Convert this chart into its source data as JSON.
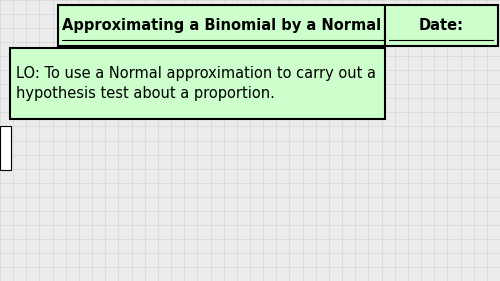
{
  "background_color": "#ececec",
  "grid_color": "#d0d0d0",
  "box_fill_color": "#ccffcc",
  "box_edge_color": "#000000",
  "title_text": "Approximating a Binomial by a Normal",
  "date_text": "Date:",
  "lo_line1": "LO: To use a Normal approximation to carry out a",
  "lo_line2": "hypothesis test about a proportion.",
  "title_fontsize": 10.5,
  "lo_fontsize": 10.5,
  "fig_width": 5.0,
  "fig_height": 2.81
}
